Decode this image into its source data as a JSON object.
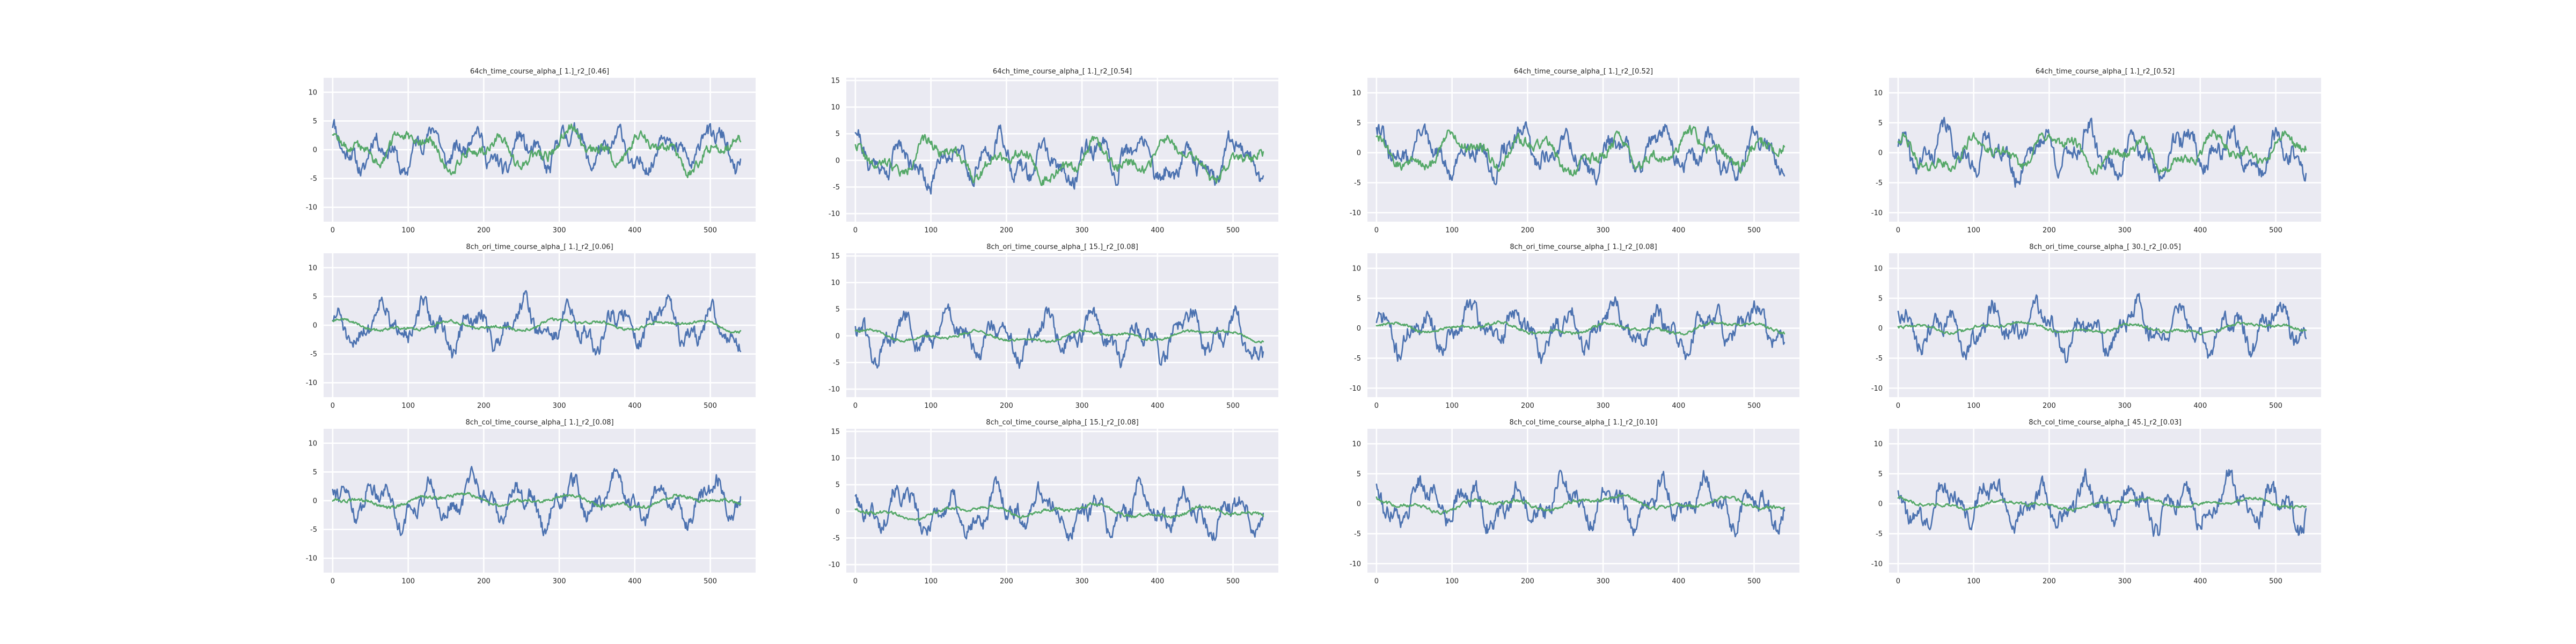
{
  "colors": {
    "predicted": "#4c72b0",
    "actual": "#55a868"
  },
  "chart_data": [
    {
      "type": "line",
      "title": "64ch_time_course_alpha_[ 1.]_r2_[0.46]",
      "xlim": [
        -12,
        560
      ],
      "ylim": [
        -12.5,
        12.5
      ],
      "xticks": [
        0,
        100,
        200,
        300,
        400,
        500
      ],
      "yticks": [
        10,
        5,
        0,
        -5,
        -10
      ],
      "x_count": 541,
      "series": [
        {
          "color": "predicted",
          "amp": 4.2,
          "freq": 0.1,
          "noise": 2.2,
          "seed": 11,
          "values": []
        },
        {
          "color": "actual",
          "amp": 3.4,
          "freq": 0.06,
          "noise": 1.4,
          "seed": 12,
          "values": []
        }
      ]
    },
    {
      "type": "line",
      "title": "64ch_time_course_alpha_[ 1.]_r2_[0.54]",
      "xlim": [
        -12,
        560
      ],
      "ylim": [
        -11.5,
        15.5
      ],
      "xticks": [
        0,
        100,
        200,
        300,
        400,
        500
      ],
      "yticks": [
        15,
        10,
        5,
        0,
        -5,
        -10
      ],
      "x_count": 541,
      "series": [
        {
          "color": "predicted",
          "amp": 4.6,
          "freq": 0.1,
          "noise": 2.5,
          "seed": 21,
          "values": []
        },
        {
          "color": "actual",
          "amp": 3.8,
          "freq": 0.06,
          "noise": 1.5,
          "seed": 22,
          "values": []
        }
      ]
    },
    {
      "type": "line",
      "title": "64ch_time_course_alpha_[ 1.]_r2_[0.52]",
      "xlim": [
        -12,
        560
      ],
      "ylim": [
        -11.5,
        12.5
      ],
      "xticks": [
        0,
        100,
        200,
        300,
        400,
        500
      ],
      "yticks": [
        10,
        5,
        0,
        -5,
        -10
      ],
      "x_count": 541,
      "series": [
        {
          "color": "predicted",
          "amp": 4.0,
          "freq": 0.1,
          "noise": 2.3,
          "seed": 31,
          "values": []
        },
        {
          "color": "actual",
          "amp": 3.3,
          "freq": 0.06,
          "noise": 1.4,
          "seed": 32,
          "values": []
        }
      ]
    },
    {
      "type": "line",
      "title": "64ch_time_course_alpha_[ 1.]_r2_[0.52]",
      "xlim": [
        -12,
        560
      ],
      "ylim": [
        -11.5,
        12.5
      ],
      "xticks": [
        0,
        100,
        200,
        300,
        400,
        500
      ],
      "yticks": [
        10,
        5,
        0,
        -5,
        -10
      ],
      "x_count": 541,
      "series": [
        {
          "color": "predicted",
          "amp": 4.1,
          "freq": 0.1,
          "noise": 2.3,
          "seed": 41,
          "values": []
        },
        {
          "color": "actual",
          "amp": 3.2,
          "freq": 0.06,
          "noise": 1.3,
          "seed": 42,
          "values": []
        }
      ]
    },
    {
      "type": "line",
      "title": "8ch_ori_time_course_alpha_[ 1.]_r2_[0.06]",
      "xlim": [
        -12,
        560
      ],
      "ylim": [
        -12.5,
        12.5
      ],
      "xticks": [
        0,
        100,
        200,
        300,
        400,
        500
      ],
      "yticks": [
        10,
        5,
        0,
        -5,
        -10
      ],
      "x_count": 541,
      "series": [
        {
          "color": "predicted",
          "amp": 4.2,
          "freq": 0.1,
          "noise": 2.2,
          "seed": 51,
          "values": []
        },
        {
          "color": "actual",
          "amp": 1.1,
          "freq": 0.04,
          "noise": 0.4,
          "seed": 52,
          "values": []
        }
      ]
    },
    {
      "type": "line",
      "title": "8ch_ori_time_course_alpha_[ 15.]_r2_[0.08]",
      "xlim": [
        -12,
        560
      ],
      "ylim": [
        -11.5,
        15.5
      ],
      "xticks": [
        0,
        100,
        200,
        300,
        400,
        500
      ],
      "yticks": [
        15,
        10,
        5,
        0,
        -5,
        -10
      ],
      "x_count": 541,
      "series": [
        {
          "color": "predicted",
          "amp": 4.6,
          "freq": 0.1,
          "noise": 2.5,
          "seed": 61,
          "values": []
        },
        {
          "color": "actual",
          "amp": 1.2,
          "freq": 0.04,
          "noise": 0.4,
          "seed": 62,
          "values": []
        }
      ]
    },
    {
      "type": "line",
      "title": "8ch_ori_time_course_alpha_[ 1.]_r2_[0.08]",
      "xlim": [
        -12,
        560
      ],
      "ylim": [
        -11.5,
        12.5
      ],
      "xticks": [
        0,
        100,
        200,
        300,
        400,
        500
      ],
      "yticks": [
        10,
        5,
        0,
        -5,
        -10
      ],
      "x_count": 541,
      "series": [
        {
          "color": "predicted",
          "amp": 4.0,
          "freq": 0.1,
          "noise": 2.3,
          "seed": 71,
          "values": []
        },
        {
          "color": "actual",
          "amp": 1.1,
          "freq": 0.04,
          "noise": 0.4,
          "seed": 72,
          "values": []
        }
      ]
    },
    {
      "type": "line",
      "title": "8ch_ori_time_course_alpha_[ 30.]_r2_[0.05]",
      "xlim": [
        -12,
        560
      ],
      "ylim": [
        -11.5,
        12.5
      ],
      "xticks": [
        0,
        100,
        200,
        300,
        400,
        500
      ],
      "yticks": [
        10,
        5,
        0,
        -5,
        -10
      ],
      "x_count": 541,
      "series": [
        {
          "color": "predicted",
          "amp": 4.1,
          "freq": 0.1,
          "noise": 2.3,
          "seed": 81,
          "values": []
        },
        {
          "color": "actual",
          "amp": 1.0,
          "freq": 0.04,
          "noise": 0.4,
          "seed": 82,
          "values": []
        }
      ]
    },
    {
      "type": "line",
      "title": "8ch_col_time_course_alpha_[ 1.]_r2_[0.08]",
      "xlim": [
        -12,
        560
      ],
      "ylim": [
        -12.5,
        12.5
      ],
      "xticks": [
        0,
        100,
        200,
        300,
        400,
        500
      ],
      "yticks": [
        10,
        5,
        0,
        -5,
        -10
      ],
      "x_count": 541,
      "series": [
        {
          "color": "predicted",
          "amp": 4.2,
          "freq": 0.1,
          "noise": 2.2,
          "seed": 91,
          "values": []
        },
        {
          "color": "actual",
          "amp": 1.3,
          "freq": 0.04,
          "noise": 0.5,
          "seed": 92,
          "values": []
        }
      ]
    },
    {
      "type": "line",
      "title": "8ch_col_time_course_alpha_[ 15.]_r2_[0.08]",
      "xlim": [
        -12,
        560
      ],
      "ylim": [
        -11.5,
        15.5
      ],
      "xticks": [
        0,
        100,
        200,
        300,
        400,
        500
      ],
      "yticks": [
        15,
        10,
        5,
        0,
        -5,
        -10
      ],
      "x_count": 541,
      "series": [
        {
          "color": "predicted",
          "amp": 4.6,
          "freq": 0.1,
          "noise": 2.5,
          "seed": 101,
          "values": []
        },
        {
          "color": "actual",
          "amp": 1.4,
          "freq": 0.04,
          "noise": 0.5,
          "seed": 102,
          "values": []
        }
      ]
    },
    {
      "type": "line",
      "title": "8ch_col_time_course_alpha_[ 1.]_r2_[0.10]",
      "xlim": [
        -12,
        560
      ],
      "ylim": [
        -11.5,
        12.5
      ],
      "xticks": [
        0,
        100,
        200,
        300,
        400,
        500
      ],
      "yticks": [
        10,
        5,
        0,
        -5,
        -10
      ],
      "x_count": 541,
      "series": [
        {
          "color": "predicted",
          "amp": 4.0,
          "freq": 0.1,
          "noise": 2.3,
          "seed": 111,
          "values": []
        },
        {
          "color": "actual",
          "amp": 1.3,
          "freq": 0.04,
          "noise": 0.5,
          "seed": 112,
          "values": []
        }
      ]
    },
    {
      "type": "line",
      "title": "8ch_col_time_course_alpha_[ 45.]_r2_[0.03]",
      "xlim": [
        -12,
        560
      ],
      "ylim": [
        -11.5,
        12.5
      ],
      "xticks": [
        0,
        100,
        200,
        300,
        400,
        500
      ],
      "yticks": [
        10,
        5,
        0,
        -5,
        -10
      ],
      "x_count": 541,
      "series": [
        {
          "color": "predicted",
          "amp": 4.1,
          "freq": 0.1,
          "noise": 2.3,
          "seed": 121,
          "values": []
        },
        {
          "color": "actual",
          "amp": 1.0,
          "freq": 0.04,
          "noise": 0.4,
          "seed": 122,
          "values": []
        }
      ]
    }
  ]
}
